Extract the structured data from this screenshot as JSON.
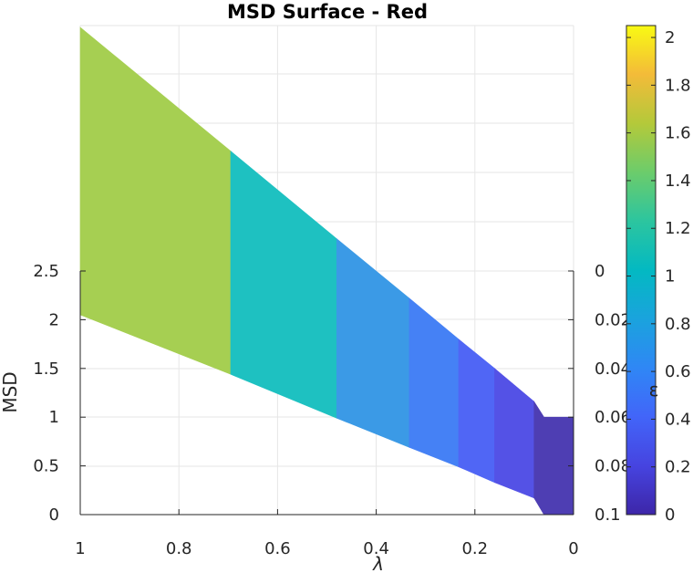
{
  "chart_data": {
    "type": "surface",
    "title": "MSD Surface - Red",
    "xlabel": "λ",
    "ylabel": "MSD",
    "ylabel_right": "",
    "colorbar_label": "ε",
    "x_ticks": [
      "1",
      "0.8",
      "0.6",
      "0.4",
      "0.2",
      "0"
    ],
    "y_ticks": [
      "0",
      "0.5",
      "1",
      "1.5",
      "2",
      "2.5"
    ],
    "y_ticks_right": [
      "0",
      "0.02",
      "0.04",
      "0.06",
      "0.08",
      "0.1"
    ],
    "colorbar_ticks": [
      "0",
      "0.2",
      "0.4",
      "0.6",
      "0.8",
      "1",
      "1.2",
      "1.4",
      "1.6",
      "1.8",
      "2"
    ],
    "xlim": [
      1,
      0
    ],
    "ylim": [
      0,
      2.5
    ],
    "ylim_right": [
      0,
      0.1
    ],
    "colorbar_lim": [
      0,
      2.05
    ],
    "grid": true,
    "colormap": "parula",
    "bands": [
      {
        "x_from": 1.0,
        "x_to": 0.695,
        "value": 1.38,
        "color": "#a6cf52"
      },
      {
        "x_from": 0.695,
        "x_to": 0.48,
        "value": 1.0,
        "color": "#1ec1c1"
      },
      {
        "x_from": 0.48,
        "x_to": 0.333,
        "value": 0.65,
        "color": "#3b9ae6"
      },
      {
        "x_from": 0.333,
        "x_to": 0.233,
        "value": 0.48,
        "color": "#4581f5"
      },
      {
        "x_from": 0.233,
        "x_to": 0.16,
        "value": 0.33,
        "color": "#5066f5"
      },
      {
        "x_from": 0.16,
        "x_to": 0.08,
        "value": 0.2,
        "color": "#5452e6"
      },
      {
        "x_from": 0.08,
        "x_to": 0.0,
        "value": 0.1,
        "color": "#4e3eb3"
      }
    ],
    "surface_top_y": [
      {
        "x": 1.0,
        "y": 5.0
      },
      {
        "x": 0.695,
        "y": 3.73
      },
      {
        "x": 0.48,
        "y": 2.83
      },
      {
        "x": 0.333,
        "y": 2.22
      },
      {
        "x": 0.233,
        "y": 1.8
      },
      {
        "x": 0.16,
        "y": 1.5
      },
      {
        "x": 0.08,
        "y": 1.16
      },
      {
        "x": 0.06,
        "y": 1.0
      },
      {
        "x": 0.0,
        "y": 1.0
      }
    ],
    "surface_bottom_y": [
      {
        "x": 1.0,
        "y": 2.05
      },
      {
        "x": 0.695,
        "y": 1.44
      },
      {
        "x": 0.48,
        "y": 0.99
      },
      {
        "x": 0.333,
        "y": 0.69
      },
      {
        "x": 0.233,
        "y": 0.49
      },
      {
        "x": 0.16,
        "y": 0.33
      },
      {
        "x": 0.08,
        "y": 0.17
      },
      {
        "x": 0.06,
        "y": 0.0
      },
      {
        "x": 0.0,
        "y": 0.0
      }
    ]
  }
}
